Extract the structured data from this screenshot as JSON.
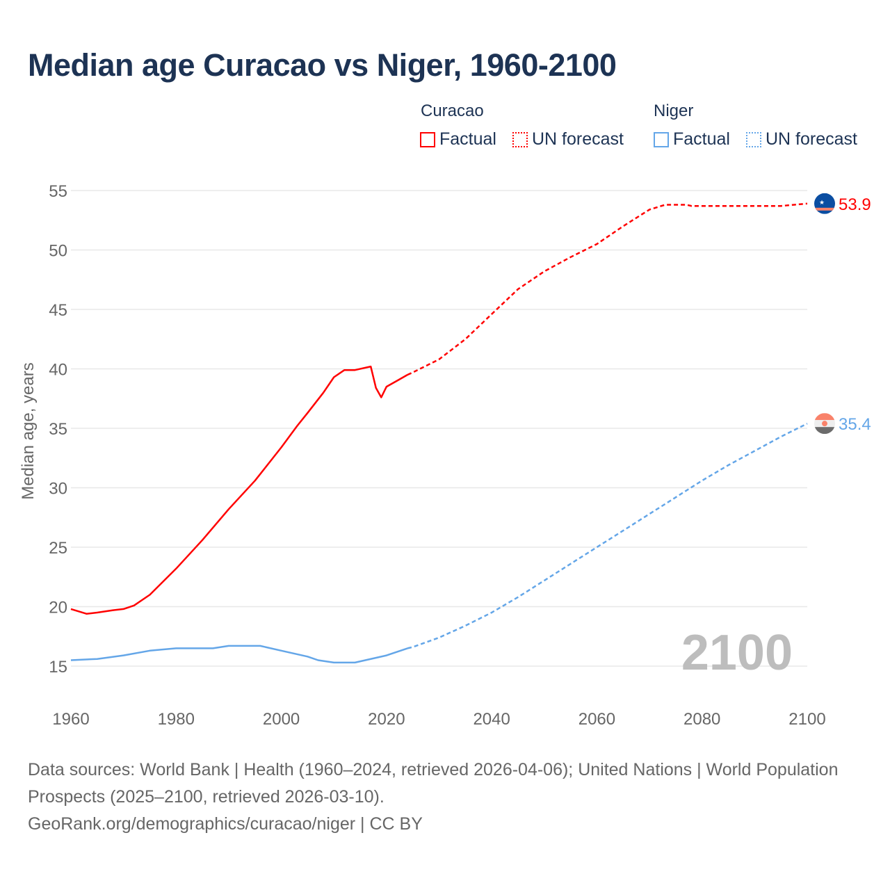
{
  "title": "Median age Curacao vs Niger, 1960-2100",
  "legend": {
    "groups": [
      {
        "name": "Curacao",
        "color": "#ff0000",
        "factual": "Factual",
        "forecast": "UN forecast"
      },
      {
        "name": "Niger",
        "color": "#64a6e8",
        "factual": "Factual",
        "forecast": "UN forecast"
      }
    ]
  },
  "chart_data": {
    "type": "line",
    "title": "Median age Curacao vs Niger, 1960-2100",
    "xlabel": "",
    "ylabel": "Median age, years",
    "xlim": [
      1960,
      2100
    ],
    "ylim": [
      15,
      55
    ],
    "xticks": [
      1960,
      1980,
      2000,
      2020,
      2040,
      2060,
      2080,
      2100
    ],
    "yticks": [
      15,
      20,
      25,
      30,
      35,
      40,
      45,
      50,
      55
    ],
    "grid": true,
    "year_watermark": "2100",
    "series": [
      {
        "name": "Curacao",
        "color": "#ff0000",
        "end_label": "53.9",
        "factual": {
          "x": [
            1960,
            1963,
            1965,
            1968,
            1970,
            1972,
            1975,
            1980,
            1985,
            1990,
            1995,
            2000,
            2003,
            2005,
            2008,
            2010,
            2012,
            2014,
            2017,
            2018,
            2019,
            2020,
            2022,
            2024
          ],
          "y": [
            19.8,
            19.4,
            19.5,
            19.7,
            19.8,
            20.1,
            21.0,
            23.2,
            25.6,
            28.2,
            30.6,
            33.4,
            35.2,
            36.3,
            38.0,
            39.3,
            39.9,
            39.9,
            40.2,
            38.4,
            37.6,
            38.5,
            39.0,
            39.5
          ]
        },
        "forecast": {
          "x": [
            2024,
            2025,
            2030,
            2035,
            2040,
            2045,
            2050,
            2055,
            2060,
            2065,
            2070,
            2073,
            2077,
            2078,
            2095,
            2100
          ],
          "y": [
            39.5,
            39.7,
            40.8,
            42.5,
            44.6,
            46.7,
            48.2,
            49.4,
            50.5,
            52.0,
            53.4,
            53.8,
            53.8,
            53.7,
            53.7,
            53.9
          ]
        }
      },
      {
        "name": "Niger",
        "color": "#64a6e8",
        "end_label": "35.4",
        "factual": {
          "x": [
            1960,
            1965,
            1970,
            1975,
            1980,
            1987,
            1990,
            1996,
            2000,
            2005,
            2007,
            2010,
            2014,
            2020,
            2024
          ],
          "y": [
            15.5,
            15.6,
            15.9,
            16.3,
            16.5,
            16.5,
            16.7,
            16.7,
            16.3,
            15.8,
            15.5,
            15.3,
            15.3,
            15.9,
            16.5
          ]
        },
        "forecast": {
          "x": [
            2024,
            2025,
            2030,
            2035,
            2040,
            2045,
            2050,
            2055,
            2060,
            2065,
            2070,
            2075,
            2080,
            2085,
            2090,
            2095,
            2100
          ],
          "y": [
            16.5,
            16.6,
            17.4,
            18.4,
            19.5,
            20.8,
            22.2,
            23.6,
            25.0,
            26.4,
            27.8,
            29.2,
            30.6,
            31.9,
            33.1,
            34.3,
            35.4
          ]
        }
      }
    ]
  },
  "source": {
    "line1": "Data sources: World Bank | Health (1960–2024, retrieved 2026-04-06); United Nations | World Population Prospects (2025–2100, retrieved 2026-03-10).",
    "line2": "GeoRank.org/demographics/curacao/niger | CC BY"
  }
}
